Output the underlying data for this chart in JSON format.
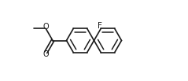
{
  "background_color": "#ffffff",
  "line_color": "#1a1a1a",
  "line_width": 1.2,
  "font_size": 7,
  "label_F": "F",
  "label_O_single": "O",
  "label_O_double": "O",
  "fig_width": 2.39,
  "fig_height": 1.03,
  "dpi": 100
}
